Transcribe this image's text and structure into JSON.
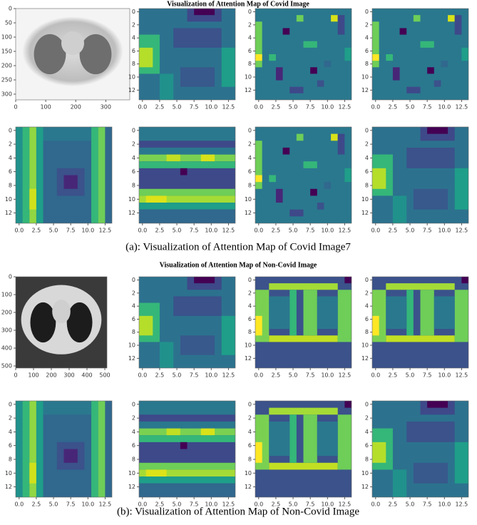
{
  "sections": [
    {
      "title": "Visualization of Attention Map of Covid Image",
      "caption": "(a): Visualization of Attention Map of Covid Image7",
      "image_xticks": [
        0,
        100,
        200,
        300
      ],
      "image_yticks": [
        0,
        50,
        100,
        150,
        200,
        250,
        300
      ],
      "image_xlim": [
        0,
        380
      ],
      "image_ylim": [
        0,
        320
      ]
    },
    {
      "title": "Visualization of Attention Map of Non-Covid Image",
      "caption": "(b): Visualization of Attention Map of Non-Covid Image",
      "image_xticks": [
        0,
        100,
        200,
        300,
        400,
        500
      ],
      "image_yticks": [
        0,
        100,
        200,
        300,
        400,
        500
      ],
      "image_xlim": [
        0,
        512
      ],
      "image_ylim": [
        0,
        512
      ]
    }
  ],
  "heatmap_xticks": [
    {
      "value": 0,
      "label": "0.0"
    },
    {
      "value": 2.5,
      "label": "2.5"
    },
    {
      "value": 5,
      "label": "5.0"
    },
    {
      "value": 7.5,
      "label": "7.5"
    },
    {
      "value": 10,
      "label": "10.0"
    },
    {
      "value": 12.5,
      "label": "12.5"
    }
  ],
  "heatmap_yticks": [
    0,
    2,
    4,
    6,
    8,
    10,
    12
  ],
  "heatmap_xlim": [
    -0.5,
    13.5
  ],
  "heatmap_ylim": [
    -0.5,
    13.5
  ]
}
